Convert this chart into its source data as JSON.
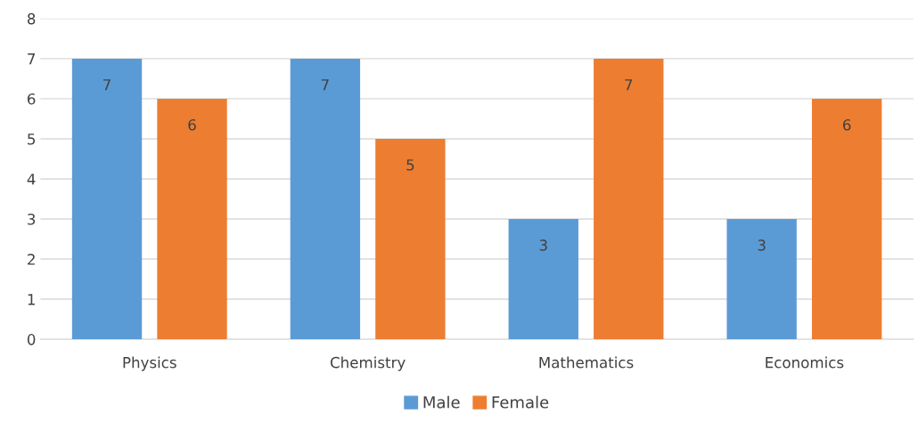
{
  "chart_data": {
    "type": "bar",
    "categories": [
      "Physics",
      "Chemistry",
      "Mathematics",
      "Economics"
    ],
    "series": [
      {
        "name": "Male",
        "color": "#5b9bd5",
        "values": [
          7,
          7,
          3,
          3
        ]
      },
      {
        "name": "Female",
        "color": "#ed7d31",
        "values": [
          6,
          5,
          7,
          6
        ]
      }
    ],
    "ylim": [
      0,
      8
    ],
    "yticks": [
      0,
      1,
      2,
      3,
      4,
      5,
      6,
      7,
      8
    ],
    "grid": "y",
    "legend": "bottom",
    "data_labels": true
  }
}
